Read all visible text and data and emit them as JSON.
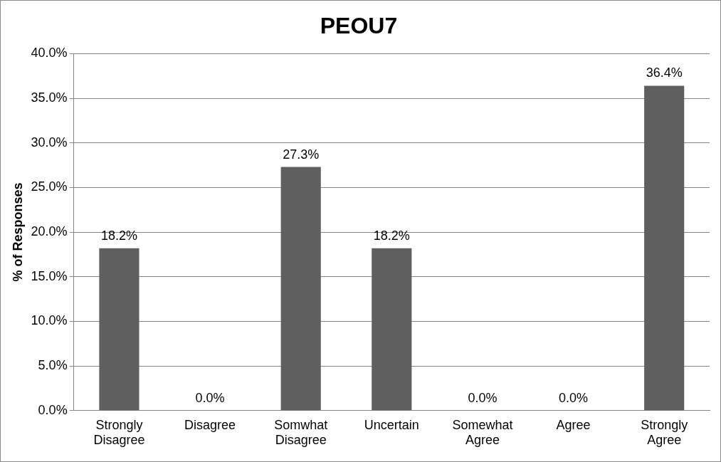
{
  "chart_data": {
    "type": "bar",
    "title": "PEOU7",
    "ylabel": "% of Responses",
    "categories": [
      "Strongly Disagree",
      "Disagree",
      "Somwhat Disagree",
      "Uncertain",
      "Somewhat Agree",
      "Agree",
      "Strongly Agree"
    ],
    "values": [
      18.2,
      0,
      27.3,
      18.2,
      0,
      0,
      36.4
    ],
    "value_labels": [
      "18.2%",
      "0.0%",
      "27.3%",
      "18.2%",
      "0.0%",
      "0.0%",
      "36.4%"
    ],
    "color": "#5f5f5f",
    "ylim": [
      0,
      40
    ],
    "yticks": [
      {
        "value": 0,
        "label": "0.0%"
      },
      {
        "value": 5,
        "label": "5.0%"
      },
      {
        "value": 10,
        "label": "10.0%"
      },
      {
        "value": 15,
        "label": "15.0%"
      },
      {
        "value": 20,
        "label": "20.0%"
      },
      {
        "value": 25,
        "label": "25.0%"
      },
      {
        "value": 30,
        "label": "30.0%"
      },
      {
        "value": 35,
        "label": "35.0%"
      },
      {
        "value": 40,
        "label": "40.0%"
      }
    ],
    "grid": "y",
    "legend": false
  }
}
